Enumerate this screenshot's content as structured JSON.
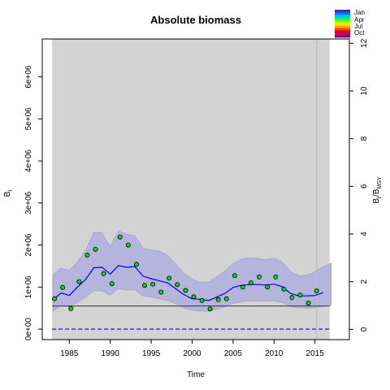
{
  "chart_data": {
    "type": "line",
    "title": "Absolute biomass",
    "xlabel": "Time",
    "ylabel_left": "B",
    "ylabel_left_sub": "t",
    "ylabel_right_main": "B",
    "ylabel_right_sub1": "t",
    "ylabel_right_slash": "/B",
    "ylabel_right_sub2": "MSY",
    "xlim": [
      1981.7,
      2019.2
    ],
    "ylim": [
      -250000,
      6900000
    ],
    "ylim_right": [
      -0.43,
      12.18
    ],
    "x_ticks": [
      1985,
      1990,
      1995,
      2000,
      2005,
      2010,
      2015
    ],
    "x_tick_labels": [
      "1985",
      "1990",
      "1995",
      "2000",
      "2005",
      "2010",
      "2015"
    ],
    "y_ticks": [
      0,
      1000000,
      2000000,
      3000000,
      4000000,
      5000000,
      6000000
    ],
    "y_tick_labels": [
      "0e+00",
      "1e+06",
      "2e+06",
      "3e+06",
      "4e+06",
      "5e+06",
      "6e+06"
    ],
    "y_right_ticks": [
      0,
      2,
      4,
      6,
      8,
      10,
      12
    ],
    "y_right_tick_labels": [
      "0",
      "2",
      "4",
      "6",
      "8",
      "10",
      "12"
    ],
    "shaded_region": [
      1982.9,
      2016.8
    ],
    "last_observation_line": 2015.2,
    "bmsy_reference": 550000,
    "zero_reference": 0,
    "colors": {
      "panel_background": "#d3d3d3",
      "ci_band": "#b4b4dc",
      "ci_edge": "#6e6ed2",
      "median_line": "#0000ff",
      "points": "#00dd00",
      "reference_line": "#333333",
      "zero_line": "#0000ff"
    },
    "legend": {
      "position": "top-right",
      "labels": [
        "Jan",
        "Apr",
        "Jul",
        "Oct"
      ],
      "colors": [
        "#3a2aa8",
        "#1a5fff",
        "#00b8ff",
        "#00e0a0",
        "#40ff20",
        "#c0ff00",
        "#ffe000",
        "#ffa000",
        "#ff4000",
        "#e00010",
        "#c00080",
        "#800080"
      ]
    },
    "observations": {
      "x": [
        1983.2,
        1984.2,
        1985.2,
        1986.2,
        1987.2,
        1988.2,
        1989.2,
        1990.2,
        1991.2,
        1992.2,
        1993.2,
        1994.2,
        1995.2,
        1996.2,
        1997.2,
        1998.2,
        1999.2,
        2000.2,
        2001.2,
        2002.2,
        2003.2,
        2004.2,
        2005.2,
        2006.2,
        2007.2,
        2008.2,
        2009.2,
        2010.2,
        2011.2,
        2012.2,
        2013.2,
        2014.2,
        2015.2
      ],
      "y": [
        720000,
        990000,
        490000,
        1130000,
        1760000,
        1900000,
        1320000,
        1080000,
        2190000,
        2000000,
        1540000,
        1040000,
        1070000,
        880000,
        1210000,
        1060000,
        920000,
        770000,
        680000,
        480000,
        700000,
        720000,
        1270000,
        1000000,
        1100000,
        1240000,
        1000000,
        1240000,
        950000,
        750000,
        810000,
        620000,
        910000
      ]
    },
    "median_series": {
      "x": [
        1983,
        1984,
        1985,
        1986,
        1987,
        1988,
        1989,
        1990,
        1991,
        1992,
        1993,
        1994,
        1995,
        1996,
        1997,
        1998,
        1999,
        2000,
        2001,
        2002,
        2003,
        2004,
        2005,
        2006,
        2007,
        2008,
        2009,
        2010,
        2011,
        2012,
        2013,
        2014,
        2015,
        2016
      ],
      "y": [
        700000,
        860000,
        800000,
        1000000,
        1180000,
        1460000,
        1470000,
        1310000,
        1510000,
        1470000,
        1490000,
        1260000,
        1200000,
        1150000,
        1100000,
        960000,
        820000,
        720000,
        710000,
        680000,
        760000,
        850000,
        990000,
        1040000,
        1060000,
        1060000,
        1050000,
        1070000,
        1010000,
        850000,
        790000,
        790000,
        800000,
        870000
      ]
    },
    "ci_upper": {
      "x": [
        1983,
        1984,
        1985,
        1986,
        1987,
        1988,
        1989,
        1990,
        1991,
        1992,
        1993,
        1994,
        1995,
        1996,
        1997,
        1998,
        1999,
        2000,
        2001,
        2002,
        2003,
        2004,
        2005,
        2006,
        2007,
        2008,
        2009,
        2010,
        2011,
        2012,
        2013,
        2014,
        2015,
        2016,
        2017
      ],
      "y": [
        1300000,
        1450000,
        1400000,
        1600000,
        1880000,
        2300000,
        2300000,
        1960000,
        2340000,
        2260000,
        2220000,
        1930000,
        1880000,
        1860000,
        1760000,
        1550000,
        1330000,
        1190000,
        1120000,
        1120000,
        1250000,
        1380000,
        1560000,
        1660000,
        1700000,
        1680000,
        1650000,
        1690000,
        1600000,
        1380000,
        1270000,
        1280000,
        1370000,
        1490000,
        1570000
      ]
    },
    "ci_lower": {
      "x": [
        1983,
        1984,
        1985,
        1986,
        1987,
        1988,
        1989,
        1990,
        1991,
        1992,
        1993,
        1994,
        1995,
        1996,
        1997,
        1998,
        1999,
        2000,
        2001,
        2002,
        2003,
        2004,
        2005,
        2006,
        2007,
        2008,
        2009,
        2010,
        2011,
        2012,
        2013,
        2014,
        2015,
        2016,
        2017
      ],
      "y": [
        420000,
        560000,
        530000,
        640000,
        760000,
        910000,
        910000,
        800000,
        960000,
        930000,
        930000,
        790000,
        760000,
        720000,
        680000,
        600000,
        500000,
        450000,
        430000,
        420000,
        470000,
        530000,
        610000,
        650000,
        670000,
        670000,
        660000,
        670000,
        630000,
        540000,
        500000,
        500000,
        510000,
        540000,
        560000
      ]
    }
  }
}
